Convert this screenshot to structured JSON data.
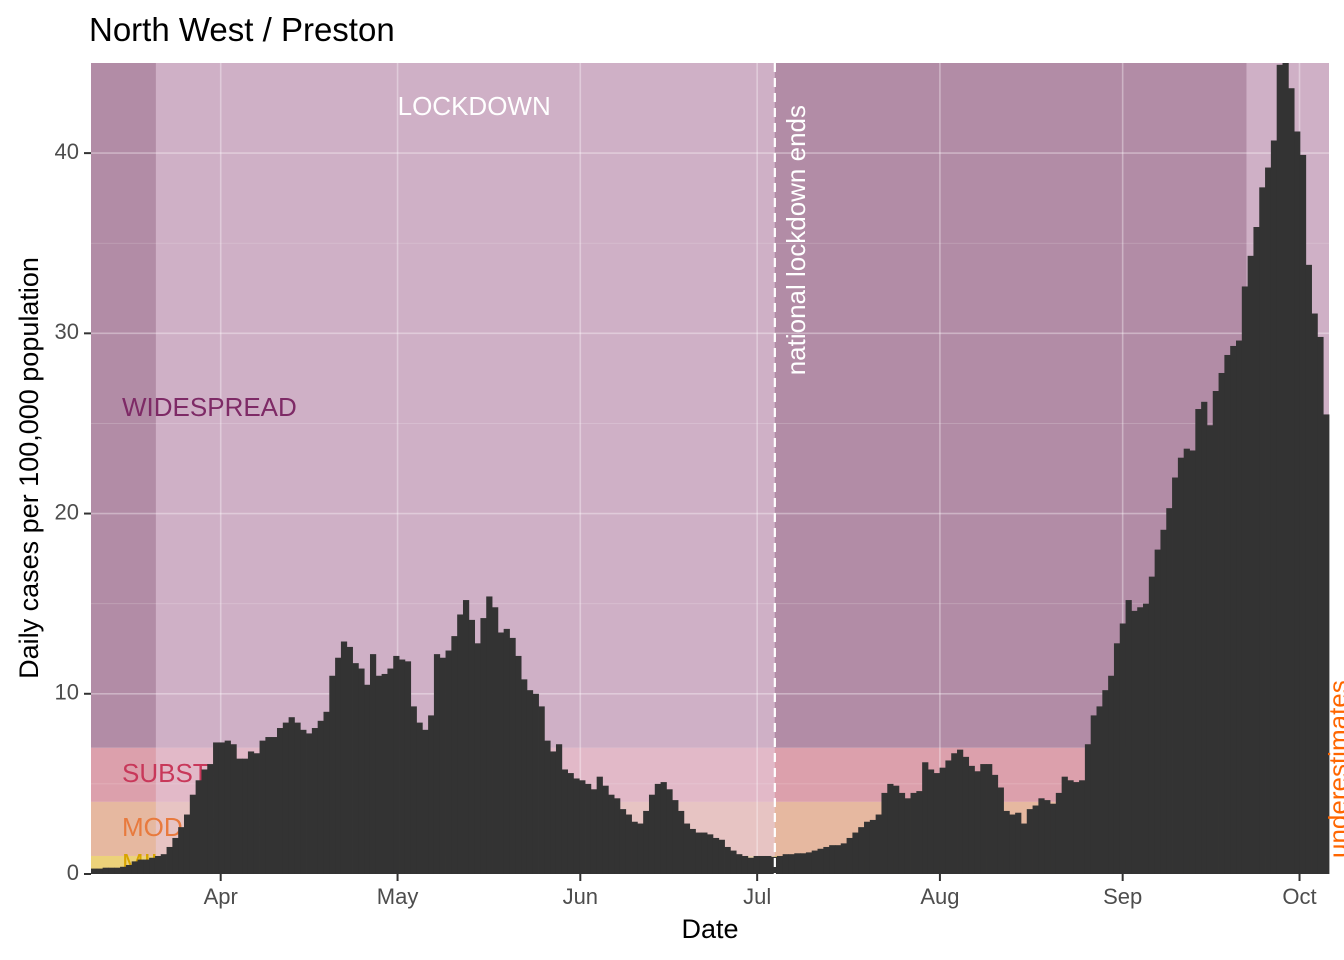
{
  "chart_data": {
    "type": "bar",
    "title": "North West / Preston",
    "xlabel": "Date",
    "ylabel": "Daily cases per 100,000 population",
    "x_start": "2020-03-10",
    "x_end": "2020-10-06",
    "ylim": [
      0,
      45
    ],
    "y_ticks": [
      0,
      10,
      20,
      30,
      40
    ],
    "x_ticks": [
      {
        "date": "2020-04-01",
        "label": "Apr"
      },
      {
        "date": "2020-05-01",
        "label": "May"
      },
      {
        "date": "2020-06-01",
        "label": "Jun"
      },
      {
        "date": "2020-07-01",
        "label": "Jul"
      },
      {
        "date": "2020-08-01",
        "label": "Aug"
      },
      {
        "date": "2020-09-01",
        "label": "Sep"
      },
      {
        "date": "2020-10-01",
        "label": "Oct"
      }
    ],
    "grid": true,
    "bar_color": "#333333",
    "bands": [
      {
        "label": "WIDESPREAD",
        "y0": 7,
        "y1": 45,
        "color": "#b28ca6",
        "text_color": "#7e2a66"
      },
      {
        "label": "SUBSTANTIAL",
        "y0": 4,
        "y1": 7,
        "color": "#dca0ac",
        "text_color": "#c8385a"
      },
      {
        "label": "MODERATE",
        "y0": 1,
        "y1": 4,
        "color": "#e6b8a0",
        "text_color": "#e87a3e"
      },
      {
        "label": "MILD",
        "y0": 0,
        "y1": 1,
        "color": "#ecd27a",
        "text_color": "#d8a400"
      }
    ],
    "shaded_periods": [
      {
        "label": "LOCKDOWN",
        "start": "2020-03-21",
        "end": "2020-07-04",
        "color": "#e8cde0",
        "opacity": 0.55
      },
      {
        "label": "",
        "start": "2020-09-22",
        "end": "2020-10-06",
        "color": "#e8cde0",
        "opacity": 0.55
      }
    ],
    "annotations": [
      {
        "text": "LOCKDOWN",
        "date": "2020-05-14",
        "y": 42.5,
        "color": "#ffffff"
      },
      {
        "text": "national lockdown ends",
        "date": "2020-07-04",
        "color": "#ffffff",
        "vline": true
      },
      {
        "text": "underestimates",
        "date": "2020-10-04",
        "color": "#ff6600"
      }
    ],
    "values": [
      0.3,
      0.3,
      0.35,
      0.35,
      0.35,
      0.4,
      0.5,
      0.7,
      0.8,
      0.8,
      0.9,
      1.0,
      1.1,
      1.5,
      2.0,
      2.6,
      3.3,
      4.4,
      5.2,
      5.8,
      6.1,
      7.3,
      7.3,
      7.4,
      7.2,
      6.4,
      6.4,
      6.8,
      6.7,
      7.4,
      7.6,
      7.6,
      8.1,
      8.4,
      8.7,
      8.4,
      8.0,
      7.8,
      8.1,
      8.5,
      9.0,
      11.0,
      12.0,
      12.9,
      12.6,
      11.7,
      11.4,
      10.5,
      12.2,
      11.0,
      11.1,
      11.4,
      12.1,
      11.9,
      11.8,
      9.3,
      8.4,
      8.0,
      8.8,
      12.2,
      12.0,
      12.4,
      13.2,
      14.4,
      15.2,
      14.1,
      12.8,
      14.2,
      15.4,
      14.8,
      13.4,
      13.6,
      13.1,
      12.1,
      10.8,
      10.2,
      10.0,
      9.3,
      7.4,
      6.8,
      7.2,
      5.8,
      5.6,
      5.3,
      5.2,
      5.0,
      4.7,
      5.4,
      4.9,
      4.4,
      4.2,
      3.6,
      3.3,
      2.9,
      2.8,
      3.5,
      4.4,
      5.0,
      5.1,
      4.7,
      4.1,
      3.5,
      2.8,
      2.5,
      2.3,
      2.3,
      2.2,
      2.0,
      1.9,
      1.5,
      1.3,
      1.1,
      1.0,
      0.9,
      1.0,
      1.0,
      1.0,
      0.95,
      1.0,
      1.1,
      1.1,
      1.15,
      1.15,
      1.2,
      1.3,
      1.4,
      1.5,
      1.6,
      1.6,
      1.7,
      2.0,
      2.3,
      2.6,
      2.9,
      3.0,
      3.3,
      4.5,
      5.0,
      4.9,
      4.5,
      4.2,
      4.5,
      4.6,
      6.2,
      5.8,
      5.6,
      5.9,
      6.3,
      6.7,
      6.9,
      6.5,
      6.0,
      5.7,
      6.1,
      6.1,
      5.5,
      4.8,
      3.5,
      3.3,
      3.4,
      2.8,
      3.6,
      3.8,
      4.2,
      4.1,
      3.9,
      4.5,
      5.4,
      5.2,
      5.1,
      5.2,
      7.2,
      8.8,
      9.3,
      10.2,
      11.0,
      12.8,
      13.9,
      15.2,
      14.6,
      14.8,
      15.0,
      16.5,
      18.0,
      19.1,
      20.3,
      22.0,
      23.1,
      23.6,
      23.5,
      25.8,
      26.2,
      24.9,
      26.8,
      27.8,
      28.8,
      29.3,
      29.6,
      32.6,
      34.3,
      35.9,
      38.1,
      39.2,
      40.7,
      44.9,
      45.0,
      43.6,
      41.2,
      39.9,
      33.8,
      31.1,
      29.8,
      25.5
    ]
  }
}
